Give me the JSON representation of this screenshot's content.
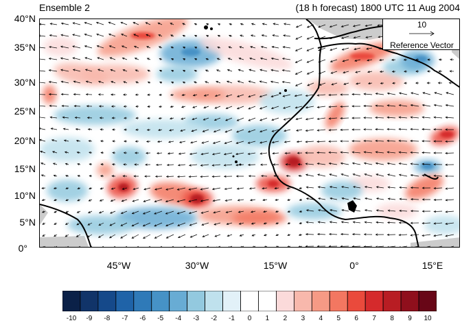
{
  "header": {
    "left_title": "Ensemble 2",
    "right_title": "(18 h forecast) 1800 UTC 11 Aug 2004"
  },
  "axes": {
    "lat_labels": [
      "40°N",
      "35°N",
      "30°N",
      "25°N",
      "20°N",
      "15°N",
      "10°N",
      "5°N",
      "0°"
    ],
    "lon_labels": [
      "45°W",
      "30°W",
      "15°W",
      "0°",
      "15°E"
    ]
  },
  "reference_vector": {
    "magnitude": "10",
    "caption": "Reference Vector"
  },
  "colorbar": {
    "labels": [
      "-10",
      "-9",
      "-8",
      "-7",
      "-6",
      "-5",
      "-4",
      "-3",
      "-2",
      "-1",
      "0",
      "1",
      "2",
      "3",
      "4",
      "5",
      "6",
      "7",
      "8",
      "9",
      "10"
    ],
    "colors": [
      "#0b2148",
      "#113469",
      "#15498a",
      "#1f63a8",
      "#2f7ab8",
      "#4692c6",
      "#68acd4",
      "#93c9df",
      "#bfe1ed",
      "#e2f1f8",
      "#ffffff",
      "#ffffff",
      "#fbdada",
      "#f8b8ac",
      "#f69a85",
      "#f37761",
      "#ea4a3c",
      "#d52a2c",
      "#b81d23",
      "#8f0f1c",
      "#680617"
    ]
  },
  "map": {
    "land_mask_color": "#cccccc",
    "coastline_color": "#000000",
    "lat_range": [
      0,
      40
    ],
    "lon_range": [
      -57,
      20
    ]
  }
}
